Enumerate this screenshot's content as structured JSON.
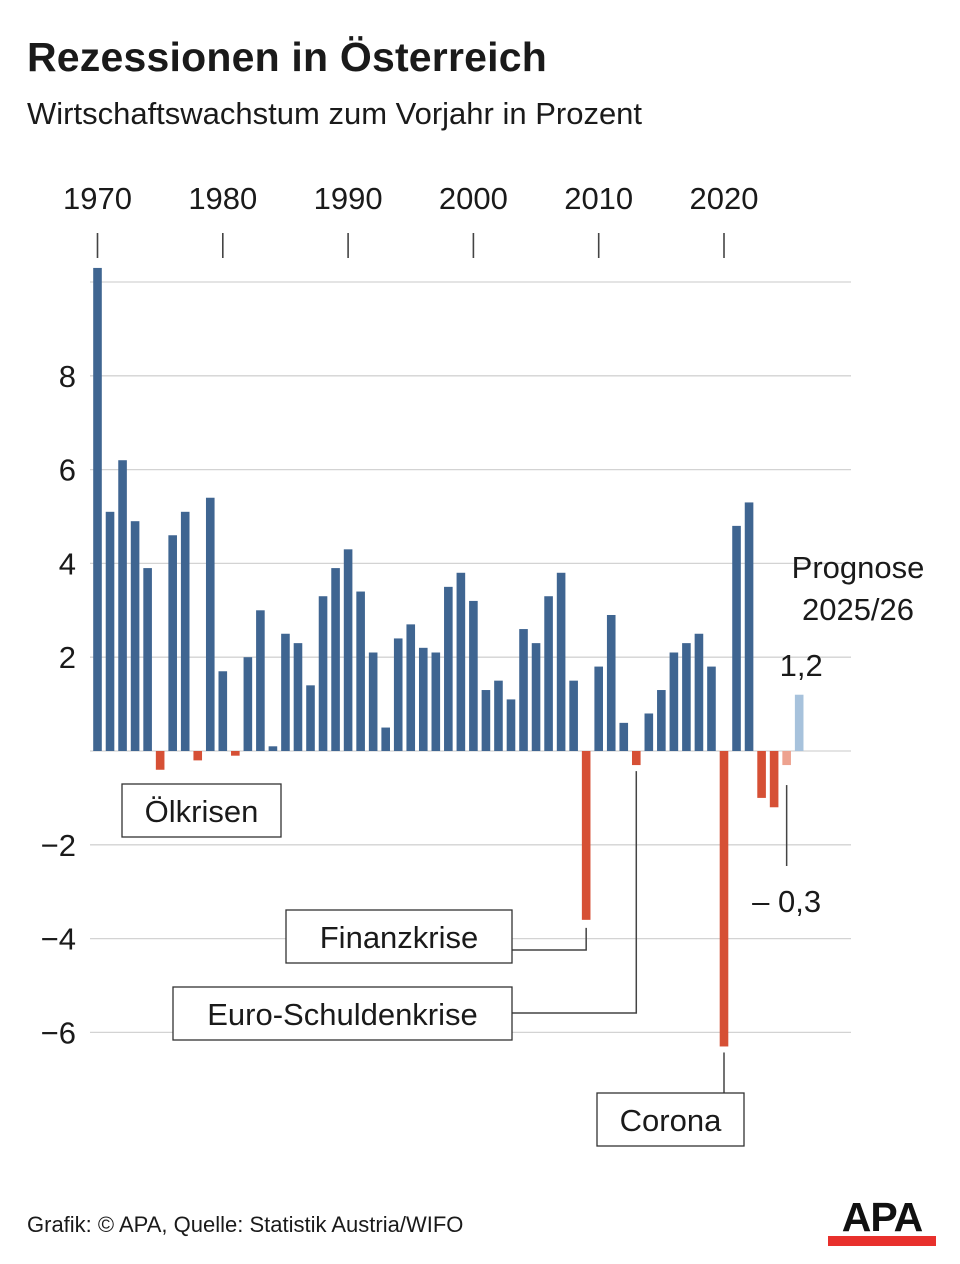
{
  "header": {
    "title": "Rezessionen in Österreich",
    "subtitle": "Wirtschaftswachstum zum Vorjahr in Prozent"
  },
  "chart_data": {
    "type": "bar",
    "title": "Rezessionen in Österreich",
    "subtitle": "Wirtschaftswachstum zum Vorjahr in Prozent",
    "xlabel": "",
    "ylabel": "",
    "ylim": [
      -7,
      10
    ],
    "x_ticks": [
      1970,
      1980,
      1990,
      2000,
      2010,
      2020
    ],
    "y_ticks": [
      {
        "value": 8,
        "label": "8"
      },
      {
        "value": 6,
        "label": "6"
      },
      {
        "value": 4,
        "label": "4"
      },
      {
        "value": 2,
        "label": "2"
      },
      {
        "value": -2,
        "label": "−2"
      },
      {
        "value": -4,
        "label": "−4"
      },
      {
        "value": -6,
        "label": "−6"
      }
    ],
    "grid": true,
    "years": [
      1970,
      1971,
      1972,
      1973,
      1974,
      1975,
      1976,
      1977,
      1978,
      1979,
      1980,
      1981,
      1982,
      1983,
      1984,
      1985,
      1986,
      1987,
      1988,
      1989,
      1990,
      1991,
      1992,
      1993,
      1994,
      1995,
      1996,
      1997,
      1998,
      1999,
      2000,
      2001,
      2002,
      2003,
      2004,
      2005,
      2006,
      2007,
      2008,
      2009,
      2010,
      2011,
      2012,
      2013,
      2014,
      2015,
      2016,
      2017,
      2018,
      2019,
      2020,
      2021,
      2022,
      2023,
      2024,
      2025,
      2026
    ],
    "values": [
      10.3,
      5.1,
      6.2,
      4.9,
      3.9,
      -0.4,
      4.6,
      5.1,
      -0.2,
      5.4,
      1.7,
      -0.1,
      2.0,
      3.0,
      0.1,
      2.5,
      2.3,
      1.4,
      3.3,
      3.9,
      4.3,
      3.4,
      2.1,
      0.5,
      2.4,
      2.7,
      2.2,
      2.1,
      3.5,
      3.8,
      3.2,
      1.3,
      1.5,
      1.1,
      2.6,
      2.3,
      3.3,
      3.8,
      1.5,
      -3.6,
      1.8,
      2.9,
      0.6,
      -0.3,
      0.8,
      1.3,
      2.1,
      2.3,
      2.5,
      1.8,
      -6.3,
      4.8,
      5.3,
      -1.0,
      -1.2,
      -0.3,
      1.2
    ],
    "forecast_years": [
      2025,
      2026
    ],
    "colors": {
      "positive": "#3f6591",
      "negative": "#d65035",
      "forecast_positive": "#a7c2dc",
      "forecast_negative": "#eda28f",
      "grid": "#d3d3d3",
      "axis": "#444444"
    },
    "forecast_label": [
      "Prognose",
      "2025/26"
    ],
    "value_labels": [
      {
        "year": 2026,
        "text": "1,2"
      },
      {
        "year": 2025,
        "text": "– 0,3"
      }
    ],
    "annotations": [
      {
        "text": "Ölkrisen",
        "years": [
          1975,
          1978,
          1981
        ]
      },
      {
        "text": "Finanzkrise",
        "year": 2009
      },
      {
        "text": "Euro-Schuldenkrise",
        "year": 2013
      },
      {
        "text": "Corona",
        "year": 2020
      }
    ]
  },
  "footer": {
    "source": "Grafik: © APA, Quelle: Statistik Austria/WIFO",
    "logo": "APA",
    "logo_color": "#e8302c"
  }
}
